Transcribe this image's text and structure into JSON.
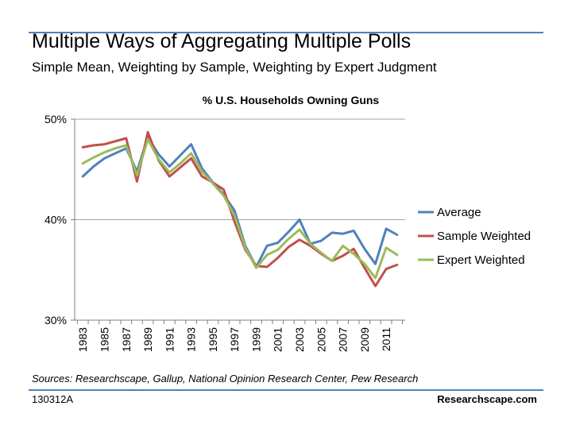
{
  "slide": {
    "title": "Multiple Ways of Aggregating Multiple Polls",
    "subtitle": "Simple Mean, Weighting by Sample, Weighting by Expert Judgment",
    "sources": "Sources: Researchscape, Gallup, National Opinion Research Center, Pew Research",
    "code": "130312A",
    "brand": "Researchscape.com",
    "accent_color": "#4f81bd"
  },
  "chart_data": {
    "type": "line",
    "title": "% U.S. Households Owning Guns",
    "xlabel": "",
    "ylabel": "",
    "x": [
      1983,
      1984,
      1985,
      1986,
      1987,
      1988,
      1989,
      1990,
      1991,
      1992,
      1993,
      1994,
      1995,
      1996,
      1997,
      1998,
      1999,
      2000,
      2001,
      2002,
      2003,
      2004,
      2005,
      2006,
      2007,
      2008,
      2009,
      2010,
      2011,
      2012
    ],
    "x_tick_labels": [
      "1983",
      "1985",
      "1987",
      "1989",
      "1991",
      "1993",
      "1995",
      "1997",
      "1999",
      "2001",
      "2003",
      "2005",
      "2007",
      "2009",
      "2011"
    ],
    "ylim": [
      30,
      50
    ],
    "y_ticks": [
      30,
      40,
      50
    ],
    "y_tick_labels": [
      "30%",
      "40%",
      "50%"
    ],
    "grid": true,
    "legend_position": "right",
    "series": [
      {
        "name": "Average",
        "color": "#4f81bd",
        "values": [
          44.3,
          45.3,
          46.1,
          46.6,
          47.1,
          44.8,
          48.2,
          46.5,
          45.3,
          46.4,
          47.5,
          45.1,
          43.7,
          42.5,
          40.9,
          37.4,
          35.3,
          37.4,
          37.7,
          38.8,
          40.0,
          37.6,
          37.9,
          38.7,
          38.6,
          38.9,
          37.1,
          35.6,
          39.1,
          38.5
        ]
      },
      {
        "name": "Sample Weighted",
        "color": "#c0504d",
        "values": [
          47.2,
          47.4,
          47.5,
          47.8,
          48.1,
          43.8,
          48.7,
          45.9,
          44.3,
          45.2,
          46.1,
          44.3,
          43.7,
          43.0,
          39.8,
          37.0,
          35.4,
          35.3,
          36.2,
          37.3,
          38.0,
          37.4,
          36.6,
          35.9,
          36.4,
          37.1,
          35.2,
          33.4,
          35.1,
          35.5
        ]
      },
      {
        "name": "Expert Weighted",
        "color": "#9bbb59",
        "values": [
          45.6,
          46.2,
          46.7,
          47.1,
          47.4,
          44.4,
          48.0,
          46.0,
          44.7,
          45.6,
          46.6,
          44.8,
          43.6,
          42.4,
          40.4,
          37.2,
          35.2,
          36.5,
          37.0,
          38.1,
          39.0,
          37.6,
          36.7,
          35.9,
          37.4,
          36.6,
          35.6,
          34.2,
          37.2,
          36.5
        ]
      }
    ]
  }
}
